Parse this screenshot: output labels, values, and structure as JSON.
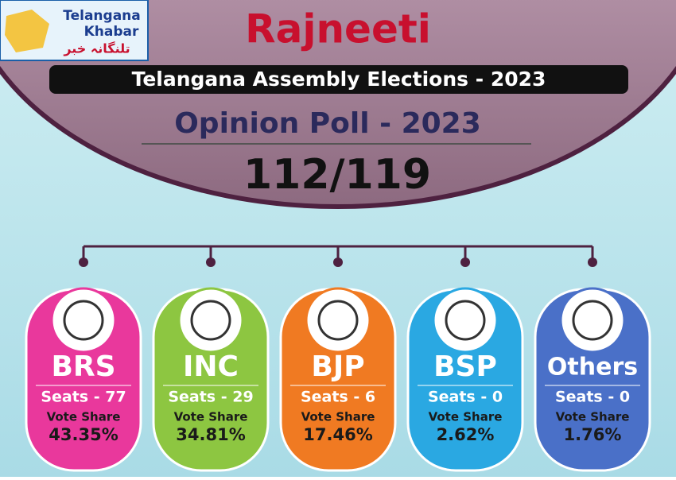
{
  "logo": {
    "line1": "Telangana",
    "line2": "Khabar",
    "urdu": "تلنگانہ خبر"
  },
  "title": "Rajneeti",
  "banner": "Telangana Assembly Elections - 2023",
  "subtitle": "Opinion Poll - 2023",
  "total": "112/119",
  "parties": [
    {
      "name": "BRS",
      "seats": "Seats - 77",
      "vote_label": "Vote Share",
      "vote_share": "43.35%",
      "color": "#e9389c"
    },
    {
      "name": "INC",
      "seats": "Seats - 29",
      "vote_label": "Vote Share",
      "vote_share": "34.81%",
      "color": "#8dc641"
    },
    {
      "name": "BJP",
      "seats": "Seats - 6",
      "vote_label": "Vote Share",
      "vote_share": "17.46%",
      "color": "#f07a22"
    },
    {
      "name": "BSP",
      "seats": "Seats - 0",
      "vote_label": "Vote Share",
      "vote_share": "2.62%",
      "color": "#2aa8e2"
    },
    {
      "name": "Others",
      "seats": "Seats - 0",
      "vote_label": "Vote Share",
      "vote_share": "1.76%",
      "color": "#4a70c8"
    }
  ]
}
